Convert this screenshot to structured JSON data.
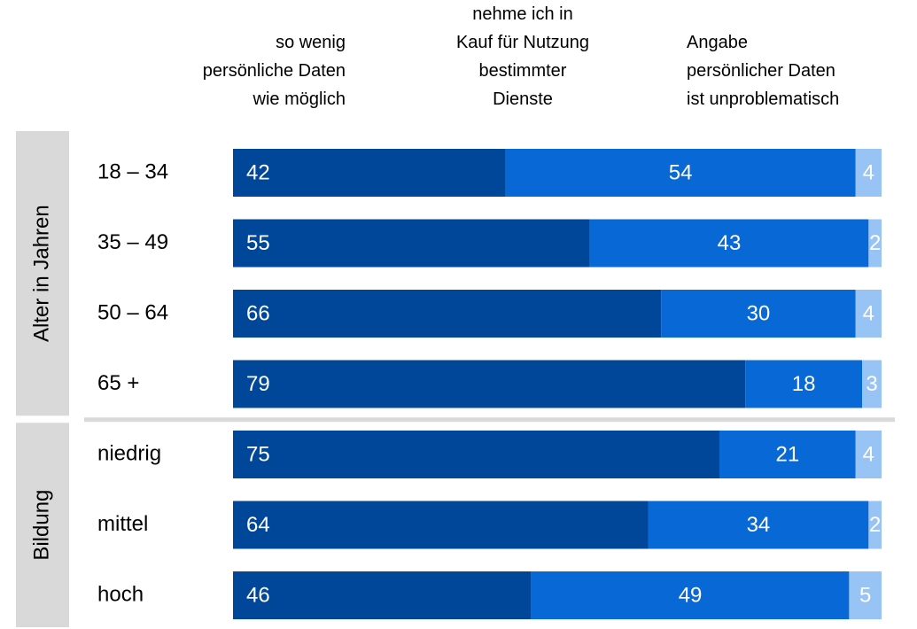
{
  "chart_data": {
    "type": "stacked-bar",
    "groups": [
      {
        "label": "Alter in Jahren",
        "categories": [
          "18 – 34",
          "35 – 49",
          "50 – 64",
          "65 +"
        ]
      },
      {
        "label": "Bildung",
        "categories": [
          "niedrig",
          "mittel",
          "hoch"
        ]
      }
    ],
    "series": [
      {
        "name": "so wenig\npersönliche Daten\nwie möglich",
        "color": "#00479a",
        "values": [
          42,
          55,
          66,
          79,
          75,
          64,
          46
        ]
      },
      {
        "name": "nehme ich in\nKauf für Nutzung\nbestimmter\nDienste",
        "color": "#0868d6",
        "values": [
          54,
          43,
          30,
          18,
          21,
          34,
          49
        ]
      },
      {
        "name": "Angabe\npersönlicher Daten\nist unproblematisch",
        "color": "#98c3f5",
        "values": [
          4,
          2,
          4,
          3,
          4,
          2,
          5
        ]
      }
    ],
    "xlim": [
      0,
      100
    ]
  }
}
